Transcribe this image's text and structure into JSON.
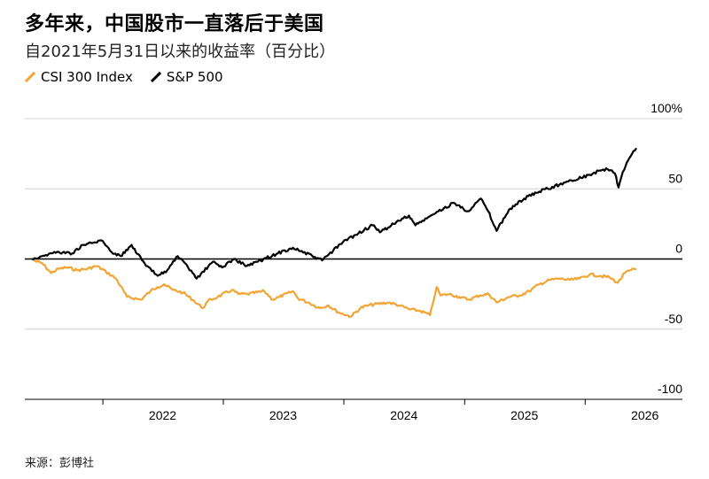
{
  "title": "多年来，中国股市一直落后于美国",
  "subtitle": "自2021年5月31日以来的收益率（百分比）",
  "source": "来源：彭博社",
  "colors": {
    "csi": "#f2a534",
    "spx": "#000000",
    "grid": "#d0d0d0",
    "zero": "#000000"
  },
  "chart_data": {
    "type": "line",
    "title": "多年来，中国股市一直落后于美国",
    "subtitle": "自2021年5月31日以来的收益率（百分比）",
    "ylim": [
      -100,
      100
    ],
    "yticks": [
      100,
      50,
      0,
      -50,
      -100
    ],
    "ytick_labels": [
      "100%",
      "50",
      "0",
      "-50",
      "-100"
    ],
    "x_ticks": [
      "2022",
      "2023",
      "2024",
      "2025",
      "2026"
    ],
    "x_range": [
      "2021-05-31",
      "2026-06-05"
    ],
    "grid": true,
    "legend_position": "top-left",
    "series": [
      {
        "name": "CSI 300 Index",
        "color": "#f2a534",
        "points": [
          [
            "2021-05-31",
            0
          ],
          [
            "2021-06-15",
            -2
          ],
          [
            "2021-07-01",
            -3
          ],
          [
            "2021-07-28",
            -10
          ],
          [
            "2021-08-20",
            -7
          ],
          [
            "2021-09-15",
            -6
          ],
          [
            "2021-10-15",
            -8
          ],
          [
            "2021-11-15",
            -7
          ],
          [
            "2021-12-13",
            -5
          ],
          [
            "2022-01-10",
            -9
          ],
          [
            "2022-02-10",
            -14
          ],
          [
            "2022-03-15",
            -27
          ],
          [
            "2022-04-26",
            -29
          ],
          [
            "2022-05-25",
            -23
          ],
          [
            "2022-06-15",
            -20
          ],
          [
            "2022-07-05",
            -18
          ],
          [
            "2022-08-01",
            -22
          ],
          [
            "2022-09-01",
            -24
          ],
          [
            "2022-09-30",
            -29
          ],
          [
            "2022-10-31",
            -35
          ],
          [
            "2022-11-15",
            -30
          ],
          [
            "2022-12-15",
            -27
          ],
          [
            "2023-01-27",
            -22
          ],
          [
            "2023-02-15",
            -25
          ],
          [
            "2023-03-15",
            -25
          ],
          [
            "2023-05-05",
            -23
          ],
          [
            "2023-05-31",
            -29
          ],
          [
            "2023-06-20",
            -27
          ],
          [
            "2023-07-31",
            -23
          ],
          [
            "2023-08-15",
            -28
          ],
          [
            "2023-09-15",
            -31
          ],
          [
            "2023-10-20",
            -35
          ],
          [
            "2023-11-15",
            -33
          ],
          [
            "2023-12-15",
            -38
          ],
          [
            "2024-01-22",
            -41
          ],
          [
            "2024-02-20",
            -35
          ],
          [
            "2024-03-15",
            -33
          ],
          [
            "2024-05-15",
            -31
          ],
          [
            "2024-06-15",
            -33
          ],
          [
            "2024-07-20",
            -36
          ],
          [
            "2024-08-20",
            -37
          ],
          [
            "2024-09-18",
            -40
          ],
          [
            "2024-09-24",
            -34
          ],
          [
            "2024-10-08",
            -20
          ],
          [
            "2024-10-20",
            -26
          ],
          [
            "2024-11-15",
            -25
          ],
          [
            "2024-12-15",
            -27
          ],
          [
            "2025-01-13",
            -29
          ],
          [
            "2025-02-15",
            -26
          ],
          [
            "2025-03-15",
            -25
          ],
          [
            "2025-04-08",
            -31
          ],
          [
            "2025-05-15",
            -27
          ],
          [
            "2025-06-15",
            -26
          ],
          [
            "2025-07-15",
            -23
          ],
          [
            "2025-08-15",
            -18
          ],
          [
            "2025-09-15",
            -15
          ],
          [
            "2025-10-15",
            -14
          ],
          [
            "2025-11-15",
            -15
          ],
          [
            "2025-12-15",
            -14
          ],
          [
            "2026-01-15",
            -11
          ],
          [
            "2026-02-15",
            -12
          ],
          [
            "2026-03-15",
            -13
          ],
          [
            "2026-04-10",
            -17
          ],
          [
            "2026-05-01",
            -10
          ],
          [
            "2026-05-20",
            -8
          ],
          [
            "2026-06-05",
            -7
          ]
        ]
      },
      {
        "name": "S&P 500",
        "color": "#000000",
        "points": [
          [
            "2021-05-31",
            0
          ],
          [
            "2021-06-30",
            2
          ],
          [
            "2021-08-15",
            5
          ],
          [
            "2021-09-30",
            4
          ],
          [
            "2021-11-01",
            10
          ],
          [
            "2021-12-31",
            13
          ],
          [
            "2022-01-27",
            5
          ],
          [
            "2022-02-24",
            2
          ],
          [
            "2022-03-29",
            10
          ],
          [
            "2022-05-12",
            -5
          ],
          [
            "2022-06-16",
            -12
          ],
          [
            "2022-07-15",
            -8
          ],
          [
            "2022-08-16",
            2
          ],
          [
            "2022-09-30",
            -10
          ],
          [
            "2022-10-12",
            -14
          ],
          [
            "2022-11-30",
            -2
          ],
          [
            "2022-12-28",
            -6
          ],
          [
            "2023-02-02",
            0
          ],
          [
            "2023-03-13",
            -5
          ],
          [
            "2023-04-15",
            -2
          ],
          [
            "2023-06-15",
            4
          ],
          [
            "2023-07-31",
            8
          ],
          [
            "2023-10-27",
            -1
          ],
          [
            "2023-12-29",
            12
          ],
          [
            "2024-03-28",
            24
          ],
          [
            "2024-04-19",
            19
          ],
          [
            "2024-05-31",
            25
          ],
          [
            "2024-07-16",
            31
          ],
          [
            "2024-08-05",
            24
          ],
          [
            "2024-09-30",
            32
          ],
          [
            "2024-11-29",
            40
          ],
          [
            "2025-01-10",
            34
          ],
          [
            "2025-02-19",
            43
          ],
          [
            "2025-03-13",
            34
          ],
          [
            "2025-04-08",
            20
          ],
          [
            "2025-05-15",
            35
          ],
          [
            "2025-06-30",
            43
          ],
          [
            "2025-08-15",
            48
          ],
          [
            "2025-10-15",
            53
          ],
          [
            "2025-11-20",
            56
          ],
          [
            "2026-01-15",
            60
          ],
          [
            "2026-02-15",
            63
          ],
          [
            "2026-03-10",
            64
          ],
          [
            "2026-04-01",
            61
          ],
          [
            "2026-04-12",
            51
          ],
          [
            "2026-04-25",
            62
          ],
          [
            "2026-05-15",
            72
          ],
          [
            "2026-06-05",
            79
          ]
        ]
      }
    ]
  }
}
